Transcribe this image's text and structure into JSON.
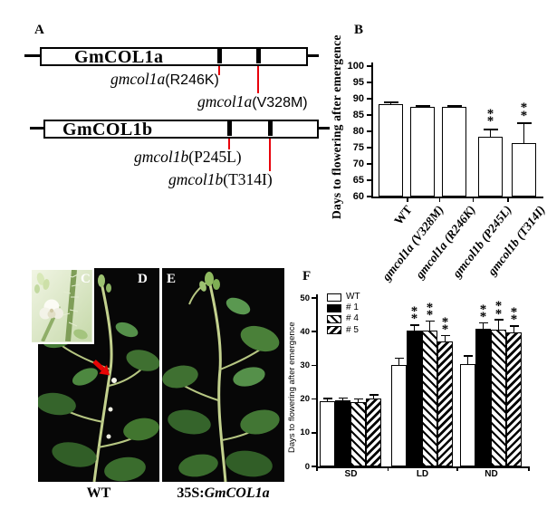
{
  "figure": {
    "background": "#ffffff",
    "accent_red": "#e8000b"
  },
  "panels": {
    "A": {
      "label": "A",
      "genes": [
        {
          "name": "GmCOL1a"
        },
        {
          "name": "GmCOL1b"
        }
      ],
      "mutations": [
        {
          "gene": "gmcol1a",
          "change": "(R246K)"
        },
        {
          "gene": "gmcol1a",
          "change": "(V328M)"
        },
        {
          "gene": "gmcol1b",
          "change": "(P245L)"
        },
        {
          "gene": "gmcol1b",
          "change": "(T314I)"
        }
      ]
    },
    "B": {
      "label": "B"
    },
    "C": {
      "label": "C"
    },
    "D": {
      "label": "D",
      "caption": "WT"
    },
    "E": {
      "label": "E",
      "caption_prefix": "35S:",
      "caption_gene": "GmCOL1a"
    },
    "F": {
      "label": "F"
    }
  },
  "chart_data": [
    {
      "type": "bar",
      "panel": "B",
      "title": "",
      "ylabel": "Days to flowering after emergence",
      "xlabel": "",
      "ylim": [
        60,
        100
      ],
      "yticks": [
        60,
        65,
        70,
        75,
        80,
        85,
        90,
        95,
        100
      ],
      "grid": false,
      "categories": [
        "WT",
        "gmcol1a (V328M)",
        "gmcol1a (R246K)",
        "gmcol1b (P245L)",
        "gmcol1b (T314I)"
      ],
      "values": [
        88.4,
        87.4,
        87.4,
        78.3,
        76.4
      ],
      "errors_plus": [
        0.5,
        0.4,
        0.4,
        2.3,
        6.1
      ],
      "significance": [
        "",
        "",
        "",
        "**",
        "**"
      ],
      "bar_fill": "#ffffff",
      "bar_border": "#000000"
    },
    {
      "type": "bar",
      "subtype": "grouped",
      "panel": "F",
      "title": "",
      "ylabel": "Days to flowering after emergence",
      "xlabel": "",
      "ylim": [
        0,
        50
      ],
      "yticks": [
        0,
        10,
        20,
        30,
        40,
        50
      ],
      "grid": false,
      "legend_position": "upper-left",
      "categories": [
        "SD",
        "LD",
        "ND"
      ],
      "series": [
        {
          "name": "WT",
          "pattern": "white",
          "values": [
            19.4,
            30.1,
            30.3
          ],
          "errors_plus": [
            0.8,
            2.0,
            2.5
          ],
          "significance": [
            "",
            "",
            ""
          ]
        },
        {
          "name": "# 1",
          "pattern": "black",
          "values": [
            19.5,
            40.2,
            40.8
          ],
          "errors_plus": [
            0.8,
            1.8,
            1.8
          ],
          "significance": [
            "",
            "**",
            "**"
          ]
        },
        {
          "name": "# 4",
          "pattern": "hatch-fwd",
          "values": [
            19.2,
            40.2,
            40.5
          ],
          "errors_plus": [
            0.8,
            2.9,
            3.0
          ],
          "significance": [
            "",
            "**",
            "**"
          ]
        },
        {
          "name": "# 5",
          "pattern": "hatch-bwd",
          "values": [
            20.2,
            37.0,
            39.9
          ],
          "errors_plus": [
            1.0,
            1.8,
            1.8
          ],
          "significance": [
            "",
            "**",
            "**"
          ]
        }
      ]
    }
  ]
}
